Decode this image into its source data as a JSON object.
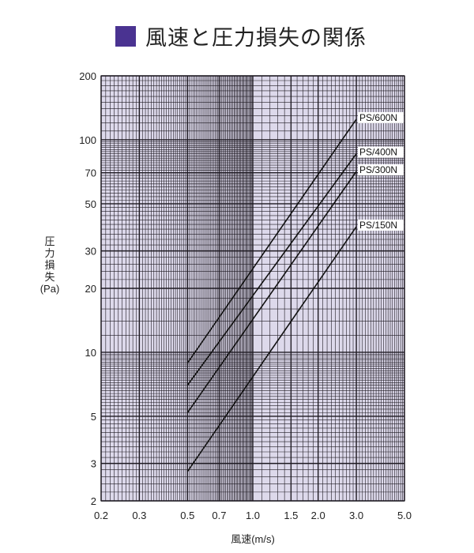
{
  "title": "風速と圧力損失の関係",
  "colors": {
    "title_square": "#4a3391",
    "plot_bg": "#ddd9eb",
    "grid": "#1e1a22",
    "line": "#111111"
  },
  "chart_data": {
    "type": "line",
    "title": "風速と圧力損失の関係",
    "xlabel": "風速(m/s)",
    "ylabel": "圧力損失(Pa)",
    "ylabel_lines": [
      "圧",
      "力",
      "損",
      "失",
      "(Pa)"
    ],
    "xscale": "log",
    "yscale": "log",
    "xlim": [
      0.2,
      5.0
    ],
    "ylim": [
      2,
      200
    ],
    "grid": true,
    "xticks": [
      0.2,
      0.3,
      0.5,
      0.7,
      1.0,
      1.5,
      2.0,
      3.0,
      5.0
    ],
    "xtick_labels": [
      "0.2",
      "0.3",
      "0.5",
      "0.7",
      "1.0",
      "1.5",
      "2.0",
      "3.0",
      "5.0"
    ],
    "yticks": [
      2,
      3,
      5,
      10,
      20,
      30,
      50,
      70,
      100,
      200
    ],
    "ytick_labels": [
      "2",
      "3",
      "5",
      "10",
      "20",
      "30",
      "50",
      "70",
      "100",
      "200"
    ],
    "series": [
      {
        "name": "PS/600N",
        "x": [
          0.5,
          3.0
        ],
        "y": [
          8.9,
          125
        ]
      },
      {
        "name": "PS/400N",
        "x": [
          0.5,
          3.0
        ],
        "y": [
          7.0,
          86
        ]
      },
      {
        "name": "PS/300N",
        "x": [
          0.5,
          3.0
        ],
        "y": [
          5.2,
          71
        ]
      },
      {
        "name": "PS/150N",
        "x": [
          0.5,
          3.0
        ],
        "y": [
          2.75,
          39
        ]
      }
    ]
  }
}
